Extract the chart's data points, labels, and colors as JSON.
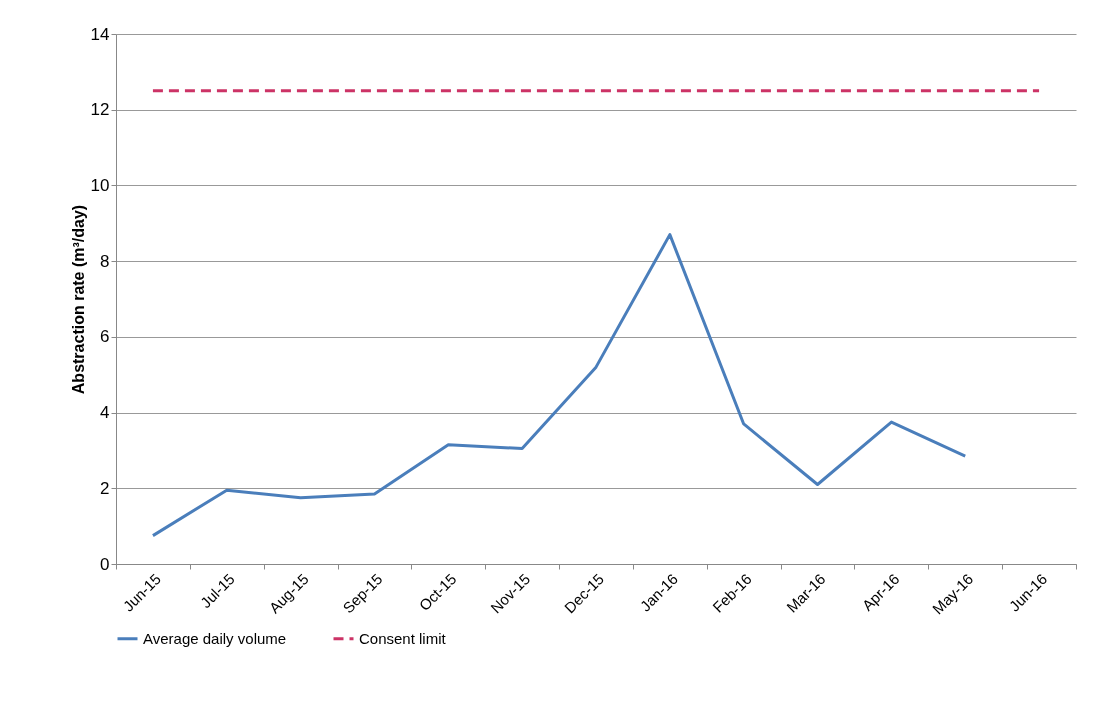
{
  "chart_data": {
    "type": "line",
    "ylabel": "Abstraction rate (m³/day)",
    "categories": [
      "Jun-15",
      "Jul-15",
      "Aug-15",
      "Sep-15",
      "Oct-15",
      "Nov-15",
      "Dec-15",
      "Jan-16",
      "Feb-16",
      "Mar-16",
      "Apr-16",
      "May-16",
      "Jun-16"
    ],
    "series": [
      {
        "name": "Average daily volume",
        "color": "#4a7ebb",
        "line_style": "solid",
        "values": [
          0.75,
          1.95,
          1.75,
          1.85,
          3.15,
          3.05,
          5.2,
          8.7,
          3.7,
          2.1,
          3.75,
          2.85,
          null
        ]
      },
      {
        "name": "Consent limit",
        "color": "#cc3366",
        "line_style": "dashed",
        "values": [
          12.5,
          12.5,
          12.5,
          12.5,
          12.5,
          12.5,
          12.5,
          12.5,
          12.5,
          12.5,
          12.5,
          12.5,
          12.5
        ]
      }
    ],
    "ylim": [
      0,
      14
    ],
    "yticks": [
      0,
      2,
      4,
      6,
      8,
      10,
      12,
      14
    ],
    "grid": "y",
    "legend": "bottom",
    "marker": "none"
  }
}
